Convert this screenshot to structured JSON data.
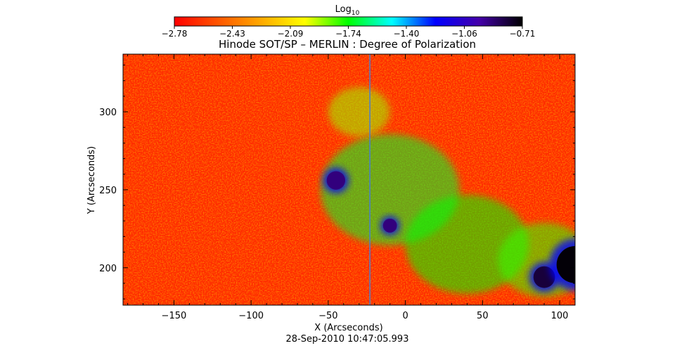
{
  "colorbar": {
    "label": "Log",
    "label_sub": "10",
    "ticks": [
      "−2.78",
      "−2.43",
      "−2.09",
      "−1.74",
      "−1.40",
      "−1.06",
      "−0.71"
    ],
    "range": [
      -2.78,
      -0.71
    ],
    "colormap": [
      "#ff0000",
      "#ff5500",
      "#ffaa00",
      "#ffff00",
      "#00ff00",
      "#00ffff",
      "#0000ff",
      "#4400aa",
      "#000000"
    ]
  },
  "chart_data": {
    "type": "heatmap",
    "title": "Hinode SOT/SP – MERLIN : Degree of Polarization",
    "xlabel": "X (Arcseconds)",
    "ylabel": "Y (Arcseconds)",
    "xlim": [
      -183,
      110
    ],
    "ylim": [
      176,
      337
    ],
    "xticks": [
      -150,
      -100,
      -50,
      0,
      50,
      100
    ],
    "yticks": [
      200,
      250,
      300
    ],
    "xtick_labels": [
      "−150",
      "−100",
      "−50",
      "0",
      "50",
      "100"
    ],
    "ytick_labels": [
      "200",
      "250",
      "300"
    ],
    "background_log10": -2.6,
    "features": [
      {
        "kind": "pore",
        "x": -45,
        "y": 256,
        "r": 6,
        "log10": -0.9
      },
      {
        "kind": "pore",
        "x": -10,
        "y": 227,
        "r": 4.5,
        "log10": -0.9
      },
      {
        "kind": "pore",
        "x": 90,
        "y": 194,
        "r": 7,
        "log10": -0.8
      },
      {
        "kind": "pore",
        "x": 110,
        "y": 202,
        "r": 12,
        "log10": -0.72
      },
      {
        "kind": "network",
        "x": -10,
        "y": 250,
        "r": 45,
        "log10": -1.7
      },
      {
        "kind": "network",
        "x": 40,
        "y": 215,
        "r": 40,
        "log10": -1.75
      },
      {
        "kind": "network",
        "x": -30,
        "y": 300,
        "r": 20,
        "log10": -1.9
      },
      {
        "kind": "network",
        "x": 90,
        "y": 205,
        "r": 30,
        "log10": -1.8
      }
    ],
    "seam_x": -23
  },
  "timestamp": "28-Sep-2010 10:47:05.993"
}
